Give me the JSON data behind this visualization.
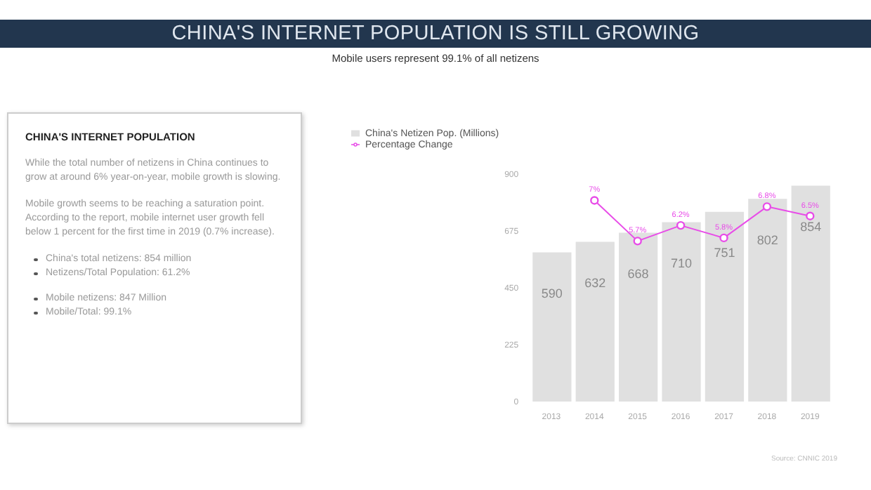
{
  "chart_data": [
    {
      "type": "other",
      "title": "CHINA'S INTERNET POPULATION",
      "annotations": [
        "While the total number of netizens in China continues to grow at around 6% year-on-year, mobile growth is slowing.",
        "Mobile growth seems to be reaching a saturation point. According to the report, mobile internet user growth fell below 1 percent for the first time in 2019 (0.7% increase).",
        "China's total netizens: 854 million",
        "Netizens/Total Population: 61.2%",
        "Mobile netizens: 847 Million",
        "Mobile/Total: 99.1%"
      ]
    },
    {
      "type": "bar",
      "title": "CHINA'S INTERNET POPULATION IS STILL GROWING",
      "subtitle": "Mobile users represent 99.1% of all netizens",
      "categories": [
        "2013",
        "2014",
        "2015",
        "2016",
        "2017",
        "2018",
        "2019"
      ],
      "series": [
        {
          "name": "China's Netizen Pop. (Millions)",
          "type": "bar",
          "color": "#e0e0e0",
          "values": [
            590,
            632,
            668,
            710,
            751,
            802,
            854
          ],
          "value_labels": [
            "590",
            "632",
            "668",
            "710",
            "751",
            "802",
            "854"
          ]
        },
        {
          "name": "Percentage Change",
          "type": "line",
          "axis": "y2",
          "color": "#e84ce8",
          "values": [
            null,
            7,
            5.7,
            6.2,
            5.8,
            6.8,
            6.5
          ],
          "value_labels": [
            null,
            "7%",
            "5.7%",
            "6.2%",
            "5.8%",
            "6.8%",
            "6.5%"
          ]
        }
      ],
      "ylim": [
        0,
        900
      ],
      "yticks": [
        0,
        225,
        450,
        675,
        900
      ],
      "tick_labels": [
        "x",
        "y"
      ],
      "legend": "top left",
      "marker": "circle",
      "annotations": [
        "Source: CNNIC 2019"
      ]
    }
  ]
}
